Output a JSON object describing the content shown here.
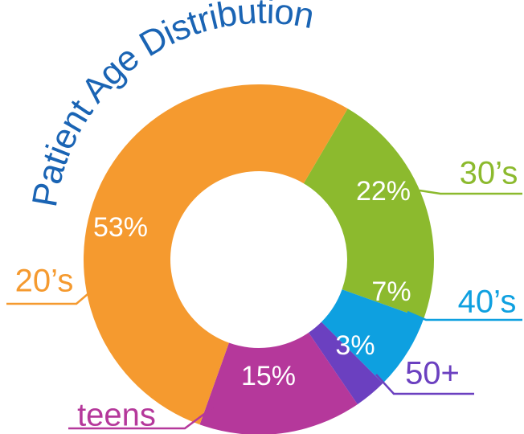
{
  "chart_data": {
    "type": "donut",
    "title": "Patient Age Distribution",
    "categories": [
      "30’s",
      "40’s",
      "50+",
      "teens",
      "20’s"
    ],
    "values": [
      22,
      7,
      3,
      15,
      53
    ],
    "value_labels": [
      "22%",
      "7%",
      "3%",
      "15%",
      "53%"
    ],
    "colors": [
      "#8cba2e",
      "#0ea0e0",
      "#6b40c0",
      "#b5389b",
      "#f59a2f"
    ],
    "title_color": "#1a64b4"
  }
}
